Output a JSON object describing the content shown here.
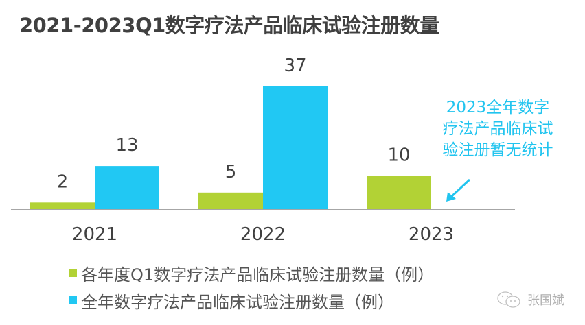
{
  "title": "2021-2023Q1数字疗法产品临床试验注册数量",
  "annotation": {
    "lines": [
      "2023全年数字",
      "疗法产品临床试",
      "验注册暂无统计"
    ]
  },
  "legend": [
    {
      "label": "各年度Q1数字疗法产品临床试验注册数量（例）",
      "color": "#b2d235"
    },
    {
      "label": "全年数字疗法产品临床试验注册数量（例）",
      "color": "#21c8f3"
    }
  ],
  "watermark": {
    "text": "张国斌",
    "icon": "wechat-icon"
  },
  "chart_data": {
    "type": "bar",
    "title": "2021-2023Q1数字疗法产品临床试验注册数量",
    "categories": [
      "2021",
      "2022",
      "2023"
    ],
    "series": [
      {
        "name": "各年度Q1数字疗法产品临床试验注册数量（例）",
        "color": "#b2d235",
        "values": [
          2,
          5,
          10
        ]
      },
      {
        "name": "全年数字疗法产品临床试验注册数量（例）",
        "color": "#21c8f3",
        "values": [
          13,
          37,
          null
        ]
      }
    ],
    "data_labels": true,
    "xlabel": "",
    "ylabel": "",
    "ylim": [
      0,
      37
    ],
    "grid": false,
    "y_axis_visible": false,
    "legend_position": "bottom-left"
  }
}
